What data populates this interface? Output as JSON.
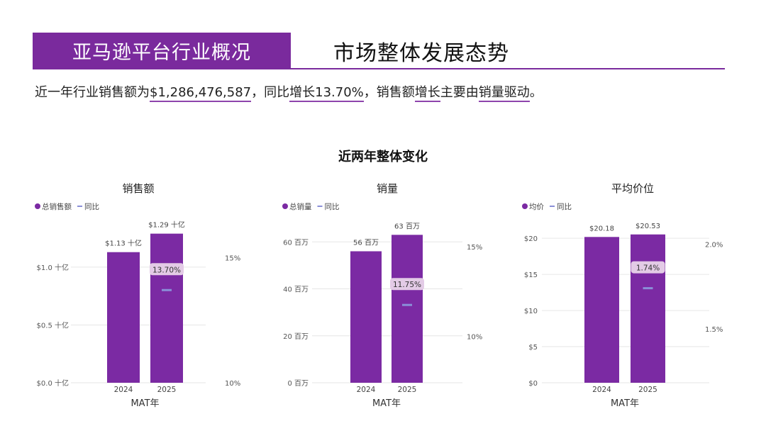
{
  "header": {
    "band_title": "亚马逊平台行业概况",
    "page_title": "市场整体发展态势"
  },
  "summary": {
    "p1": "近一年行业销售额为",
    "sales": "$1,286,476,587",
    "p2": "，同比",
    "growth": "增长13.70%",
    "p3": "，销售额",
    "increase": "增长",
    "p4": "主要由",
    "driver": "销量驱动",
    "p5": "。"
  },
  "section_title": "近两年整体变化",
  "colors": {
    "brand": "#7a2a9d",
    "bar": "#7b2aa3",
    "yoy": "#8a8fd8",
    "pill": "#e3cbe6"
  },
  "chart_data": [
    {
      "type": "bar",
      "title": "销售额",
      "xlabel": "MAT年",
      "legend": {
        "series": "总销售额",
        "yoy": "同比"
      },
      "categories": [
        "2024",
        "2025"
      ],
      "values": [
        1.13,
        1.29
      ],
      "value_labels": [
        "$1.13 十亿",
        "$1.29 十亿"
      ],
      "ylim": [
        0,
        1.3
      ],
      "yticks": [
        0,
        0.5,
        1.0
      ],
      "ytick_labels": [
        "$0.0 十亿",
        "$0.5 十亿",
        "$1.0 十亿"
      ],
      "yoy": {
        "value": 13.7,
        "label": "13.70%"
      },
      "y2lim": [
        10,
        16
      ],
      "y2ticks": [
        10,
        15
      ],
      "y2tick_labels": [
        "10%",
        "15%"
      ]
    },
    {
      "type": "bar",
      "title": "销量",
      "xlabel": "MAT年",
      "legend": {
        "series": "总销量",
        "yoy": "同比"
      },
      "categories": [
        "2024",
        "2025"
      ],
      "values": [
        56,
        63
      ],
      "value_labels": [
        "56 百万",
        "63 百万"
      ],
      "ylim": [
        0,
        64
      ],
      "yticks": [
        0,
        20,
        40,
        60
      ],
      "ytick_labels": [
        "0 百万",
        "20 百万",
        "40 百万",
        "60 百万"
      ],
      "yoy": {
        "value": 11.75,
        "label": "11.75%"
      },
      "y2lim": [
        7.4,
        15.8
      ],
      "y2ticks": [
        10,
        15
      ],
      "y2tick_labels": [
        "10%",
        "15%"
      ]
    },
    {
      "type": "bar",
      "title": "平均价位",
      "xlabel": "MAT年",
      "legend": {
        "series": "均价",
        "yoy": "同比"
      },
      "categories": [
        "2024",
        "2025"
      ],
      "values": [
        20.18,
        20.53
      ],
      "value_labels": [
        "$20.18",
        "$20.53"
      ],
      "ylim": [
        0,
        20.8
      ],
      "yticks": [
        0,
        5,
        10,
        15,
        20
      ],
      "ytick_labels": [
        "$0",
        "$5",
        "$10",
        "$15",
        "$20"
      ],
      "yoy": {
        "value": 1.74,
        "label": "1.74%"
      },
      "y2lim": [
        1.18,
        2.07
      ],
      "y2ticks": [
        1.5,
        2.0
      ],
      "y2tick_labels": [
        "1.5%",
        "2.0%"
      ]
    }
  ]
}
